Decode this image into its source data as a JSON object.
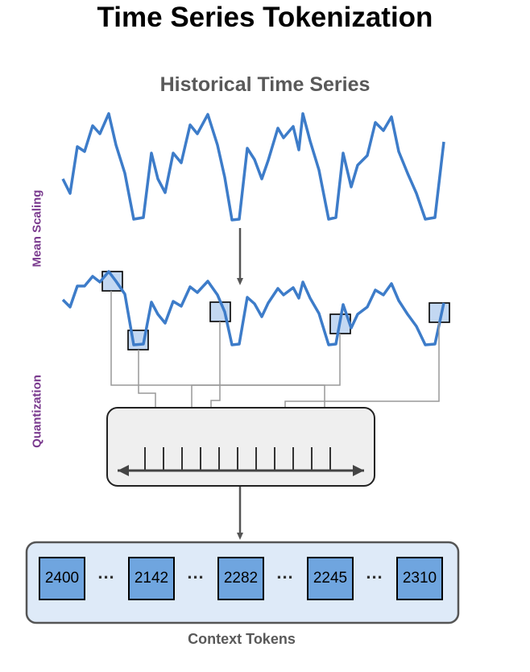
{
  "title": "Time Series Tokenization",
  "subtitle": "Historical Time Series",
  "labels": {
    "mean_scaling": "Mean Scaling",
    "quantization": "Quantization",
    "context_tokens": "Context Tokens"
  },
  "tokens": [
    "2400",
    "2142",
    "2282",
    "2245",
    "2310"
  ],
  "ellipsis": "...",
  "colors": {
    "series_line": "#3d7cc9",
    "token_fill": "#6fa5df",
    "highlight_fill": "#c3d8f2",
    "side_label": "#7a3a8e",
    "quantizer_fill": "#efefef",
    "context_box_fill": "#deeaf8"
  }
}
